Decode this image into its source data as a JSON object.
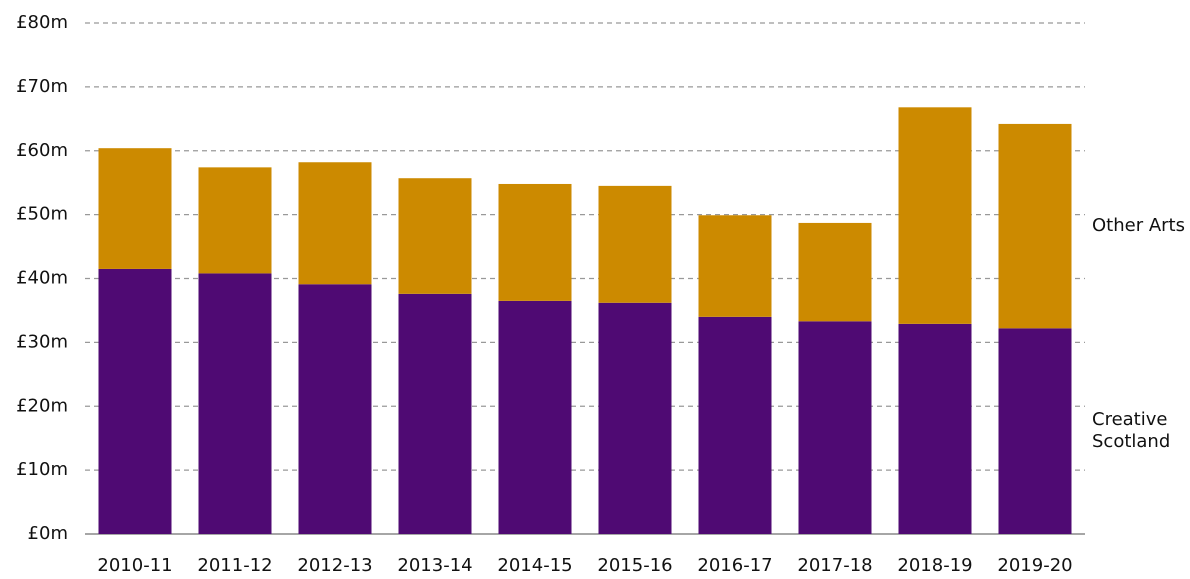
{
  "chart_data": {
    "type": "stacked_bar",
    "categories": [
      "2010-11",
      "2011-12",
      "2012-13",
      "2013-14",
      "2014-15",
      "2015-16",
      "2016-17",
      "2017-18",
      "2018-19",
      "2019-20"
    ],
    "series": [
      {
        "name": "Creative Scotland",
        "color": "#4f0a73",
        "values": [
          41.5,
          40.8,
          39.1,
          37.6,
          36.5,
          36.2,
          34.0,
          33.3,
          32.9,
          32.2
        ]
      },
      {
        "name": "Other Arts",
        "color": "#cc8a00",
        "values": [
          18.9,
          16.6,
          19.1,
          18.1,
          18.3,
          18.3,
          15.9,
          15.4,
          33.9,
          32.0
        ]
      }
    ],
    "ylim": [
      0,
      80
    ],
    "yticks": [
      {
        "value": 0,
        "label": "£0m"
      },
      {
        "value": 10,
        "label": "£10m"
      },
      {
        "value": 20,
        "label": "£20m"
      },
      {
        "value": 30,
        "label": "£30m"
      },
      {
        "value": 40,
        "label": "£40m"
      },
      {
        "value": 50,
        "label": "£50m"
      },
      {
        "value": 60,
        "label": "£60m"
      },
      {
        "value": 70,
        "label": "£70m"
      },
      {
        "value": 80,
        "label": "£80m"
      }
    ],
    "grid": true
  }
}
